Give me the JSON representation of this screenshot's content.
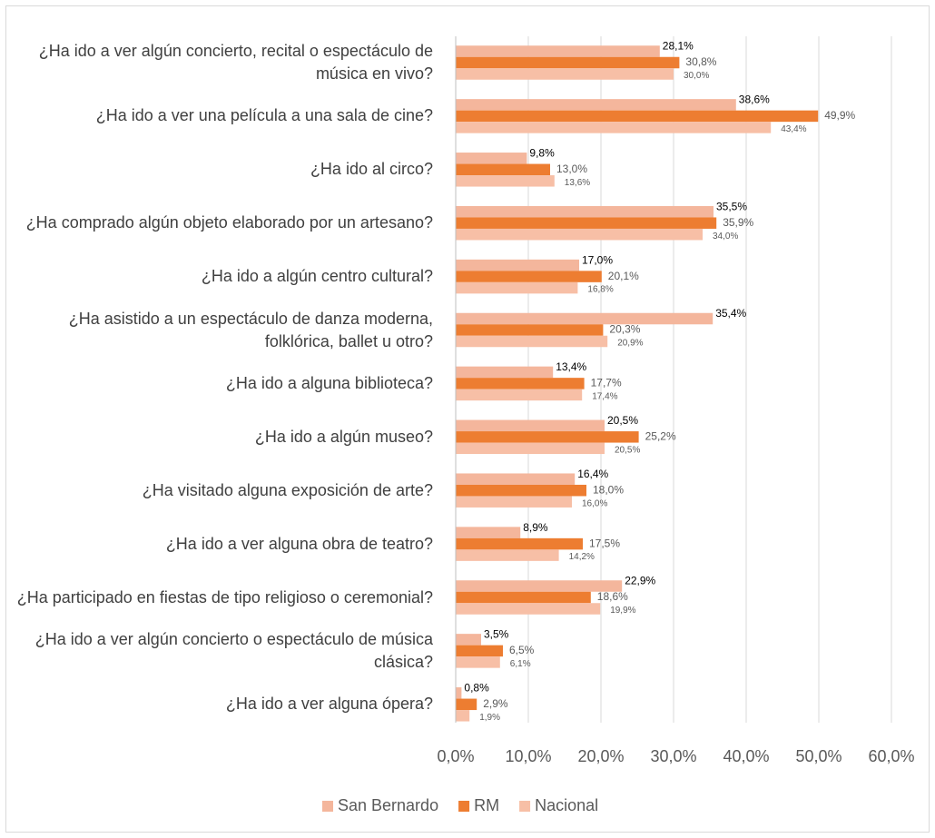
{
  "chart_data": {
    "type": "bar",
    "orientation": "horizontal",
    "categories": [
      "¿Ha ido a ver algún concierto, recital o espectáculo de música en vivo?",
      "¿Ha ido a ver una película a una sala de cine?",
      "¿Ha ido al circo?",
      "¿Ha comprado algún objeto elaborado por un artesano?",
      "¿Ha ido a algún centro cultural?",
      "¿Ha asistido a un espectáculo de danza moderna, folklórica, ballet u otro?",
      "¿Ha ido a alguna biblioteca?",
      "¿Ha ido a algún museo?",
      "¿Ha visitado alguna exposición de arte?",
      "¿Ha ido a ver alguna obra de teatro?",
      "¿Ha participado en fiestas de tipo religioso o ceremonial?",
      "¿Ha ido a ver algún concierto o espectáculo de música clásica?",
      "¿Ha ido a ver alguna ópera?"
    ],
    "series": [
      {
        "name": "San Bernardo",
        "color": "#f4b69c",
        "values": [
          28.1,
          38.6,
          9.8,
          35.5,
          17.0,
          35.4,
          13.4,
          20.5,
          16.4,
          8.9,
          22.9,
          3.5,
          0.8
        ],
        "value_labels": [
          "28,1%",
          "38,6%",
          "9,8%",
          "35,5%",
          "17,0%",
          "35,4%",
          "13,4%",
          "20,5%",
          "16,4%",
          "8,9%",
          "22,9%",
          "3,5%",
          "0,8%"
        ]
      },
      {
        "name": "RM",
        "color": "#ed7d31",
        "values": [
          30.8,
          49.9,
          13.0,
          35.9,
          20.1,
          20.3,
          17.7,
          25.2,
          18.0,
          17.5,
          18.6,
          6.5,
          2.9
        ],
        "value_labels": [
          "30,8%",
          "49,9%",
          "13,0%",
          "35,9%",
          "20,1%",
          "20,3%",
          "17,7%",
          "25,2%",
          "18,0%",
          "17,5%",
          "18,6%",
          "6,5%",
          "2,9%"
        ]
      },
      {
        "name": "Nacional",
        "color": "#f7bfa6",
        "values": [
          30.0,
          43.4,
          13.6,
          34.0,
          16.8,
          20.9,
          17.4,
          20.5,
          16.0,
          14.2,
          19.9,
          6.1,
          1.9
        ],
        "value_labels": [
          "30,0%",
          "43,4%",
          "13,6%",
          "34,0%",
          "16,8%",
          "20,9%",
          "17,4%",
          "20,5%",
          "16,0%",
          "14,2%",
          "19,9%",
          "6,1%",
          "1,9%"
        ]
      }
    ],
    "xlim": [
      0,
      60
    ],
    "xticks": [
      {
        "value": 0,
        "label": "0,0%"
      },
      {
        "value": 10,
        "label": "10,0%"
      },
      {
        "value": 20,
        "label": "20,0%"
      },
      {
        "value": 30,
        "label": "30,0%"
      },
      {
        "value": 40,
        "label": "40,0%"
      },
      {
        "value": 50,
        "label": "50,0%"
      },
      {
        "value": 60,
        "label": "60,0%"
      }
    ],
    "grid": true,
    "legend": "bottom"
  }
}
